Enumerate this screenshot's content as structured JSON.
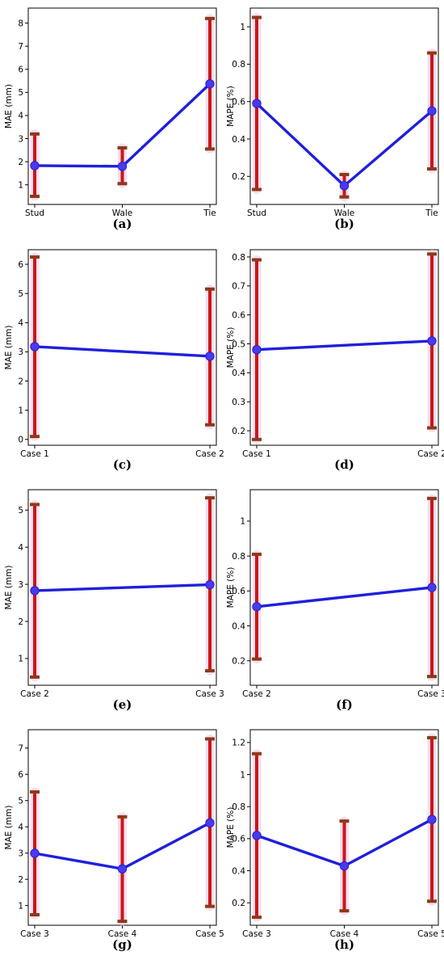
{
  "chart_data": [
    {
      "type": "line",
      "panel_label": "(a)",
      "categories": [
        "Stud",
        "Wale",
        "Tie"
      ],
      "ylabel": "MAE (mm)",
      "yticks": [
        1,
        2,
        3,
        4,
        5,
        6,
        7,
        8
      ],
      "ylim": [
        0.15,
        8.65
      ],
      "series": [
        {
          "values": [
            1.83,
            1.8,
            5.37
          ],
          "lower": [
            0.5,
            1.05,
            2.55
          ],
          "upper": [
            3.2,
            2.6,
            8.2
          ]
        }
      ]
    },
    {
      "type": "line",
      "panel_label": "(b)",
      "categories": [
        "Stud",
        "Wale",
        "Tie"
      ],
      "ylabel": "MAPE (%)",
      "yticks": [
        0.2,
        0.4,
        0.6,
        0.8,
        1.0
      ],
      "ylim": [
        0.05,
        1.1
      ],
      "series": [
        {
          "values": [
            0.59,
            0.15,
            0.55
          ],
          "lower": [
            0.13,
            0.09,
            0.24
          ],
          "upper": [
            1.05,
            0.21,
            0.86
          ]
        }
      ]
    },
    {
      "type": "line",
      "panel_label": "(c)",
      "categories": [
        "Case 1",
        "Case 2"
      ],
      "ylabel": "MAE (mm)",
      "yticks": [
        0,
        1,
        2,
        3,
        4,
        5,
        6
      ],
      "ylim": [
        -0.2,
        6.5
      ],
      "series": [
        {
          "values": [
            3.18,
            2.85
          ],
          "lower": [
            0.1,
            0.5
          ],
          "upper": [
            6.25,
            5.15
          ]
        }
      ]
    },
    {
      "type": "line",
      "panel_label": "(d)",
      "categories": [
        "Case 1",
        "Case 2"
      ],
      "ylabel": "MAPE (%)",
      "yticks": [
        0.2,
        0.3,
        0.4,
        0.5,
        0.6,
        0.7,
        0.8
      ],
      "ylim": [
        0.15,
        0.825
      ],
      "series": [
        {
          "values": [
            0.48,
            0.51
          ],
          "lower": [
            0.17,
            0.21
          ],
          "upper": [
            0.79,
            0.81
          ]
        }
      ]
    },
    {
      "type": "line",
      "panel_label": "(e)",
      "categories": [
        "Case 2",
        "Case 3"
      ],
      "ylabel": "MAE (mm)",
      "yticks": [
        1,
        2,
        3,
        4,
        5
      ],
      "ylim": [
        0.28,
        5.55
      ],
      "series": [
        {
          "values": [
            2.83,
            2.99
          ],
          "lower": [
            0.5,
            0.67
          ],
          "upper": [
            5.15,
            5.33
          ]
        }
      ]
    },
    {
      "type": "line",
      "panel_label": "(f)",
      "categories": [
        "Case 2",
        "Case 3"
      ],
      "ylabel": "MAPE (%)",
      "yticks": [
        0.2,
        0.4,
        0.6,
        0.8,
        1.0
      ],
      "ylim": [
        0.06,
        1.18
      ],
      "series": [
        {
          "values": [
            0.51,
            0.62
          ],
          "lower": [
            0.21,
            0.11
          ],
          "upper": [
            0.81,
            1.13
          ]
        }
      ]
    },
    {
      "type": "line",
      "panel_label": "(g)",
      "categories": [
        "Case 3",
        "Case 4",
        "Case 5"
      ],
      "ylabel": "MAE (mm)",
      "yticks": [
        1,
        2,
        3,
        4,
        5,
        6,
        7
      ],
      "ylim": [
        0.25,
        7.7
      ],
      "series": [
        {
          "values": [
            2.99,
            2.4,
            4.15
          ],
          "lower": [
            0.65,
            0.4,
            0.97
          ],
          "upper": [
            5.33,
            4.38,
            7.35
          ]
        }
      ]
    },
    {
      "type": "line",
      "panel_label": "(h)",
      "categories": [
        "Case 3",
        "Case 4",
        "Case 5"
      ],
      "ylabel": "MAPE (%)",
      "yticks": [
        0.2,
        0.4,
        0.6,
        0.8,
        1.0,
        1.2
      ],
      "ylim": [
        0.06,
        1.28
      ],
      "series": [
        {
          "values": [
            0.62,
            0.43,
            0.72
          ],
          "lower": [
            0.11,
            0.15,
            0.21
          ],
          "upper": [
            1.13,
            0.71,
            1.23
          ]
        }
      ]
    }
  ],
  "colors": {
    "line": "#1f1fdd",
    "marker": "#4b3ae8",
    "errorbar": "#cc1616",
    "cap": "#8b3a1a",
    "glow": "#f4c2e8"
  }
}
